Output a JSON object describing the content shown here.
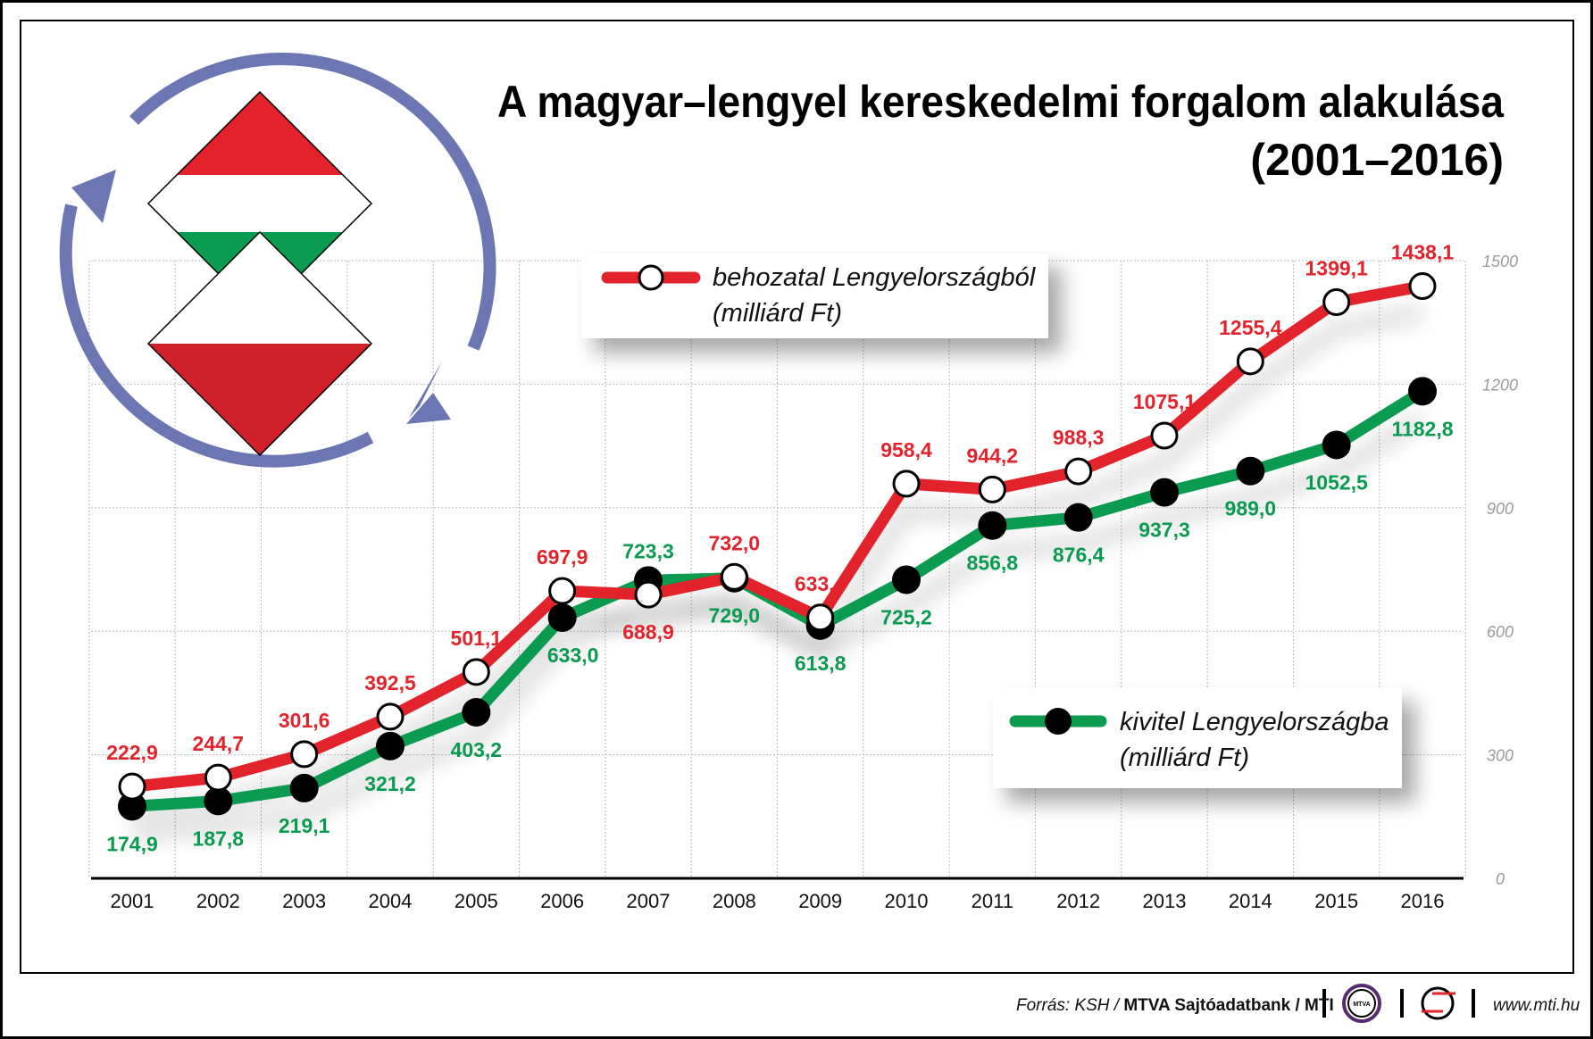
{
  "chart_data": {
    "type": "line",
    "title": "A magyar–lengyel kereskedelmi forgalom alakulása",
    "subtitle": "(2001–2016)",
    "categories": [
      "2001",
      "2002",
      "2003",
      "2004",
      "2005",
      "2006",
      "2007",
      "2008",
      "2009",
      "2010",
      "2011",
      "2012",
      "2013",
      "2014",
      "2015",
      "2016"
    ],
    "ylim": [
      0,
      1500
    ],
    "yticks": [
      "0",
      "300",
      "600",
      "900",
      "1200",
      "1500"
    ],
    "ytick_values": [
      0,
      300,
      600,
      900,
      1200,
      1500
    ],
    "grid": true,
    "series": [
      {
        "name": "behozatal Lengyelországból",
        "unit": "(milliárd Ft)",
        "color": "#e3232c",
        "marker": "open-circle",
        "values": [
          222.9,
          244.7,
          301.6,
          392.5,
          501.1,
          697.9,
          688.9,
          732.0,
          633.4,
          958.4,
          944.2,
          988.3,
          1075.1,
          1255.4,
          1399.1,
          1438.1
        ],
        "labels": [
          "222,9",
          "244,7",
          "301,6",
          "392,5",
          "501,1",
          "697,9",
          "688,9",
          "732,0",
          "633,4",
          "958,4",
          "944,2",
          "988,3",
          "1075,1",
          "1255,4",
          "1399,1",
          "1438,1"
        ]
      },
      {
        "name": "kivitel Lengyelországba",
        "unit": "(milliárd Ft)",
        "color": "#0a9a50",
        "marker": "filled-circle",
        "values": [
          174.9,
          187.8,
          219.1,
          321.2,
          403.2,
          633.0,
          723.3,
          729.0,
          613.8,
          725.2,
          856.8,
          876.4,
          937.3,
          989.0,
          1052.5,
          1182.8
        ],
        "labels": [
          "174,9",
          "187,8",
          "219,1",
          "321,2",
          "403,2",
          "633,0",
          "723,3",
          "729,0",
          "613,8",
          "725,2",
          "856,8",
          "876,4",
          "937,3",
          "989,0",
          "1052,5",
          "1182,8"
        ]
      }
    ]
  },
  "footer": {
    "source_prefix": "Forrás: KSH / ",
    "source_bold": "MTVA Sajtóadatbank / MTI",
    "logo_mtva": "MTVA",
    "url": "www.mti.hu"
  },
  "colors": {
    "arrow": "#6b76b3",
    "hungary_red": "#e3232c",
    "hungary_green": "#0a9a50",
    "poland_red": "#d0202a"
  }
}
